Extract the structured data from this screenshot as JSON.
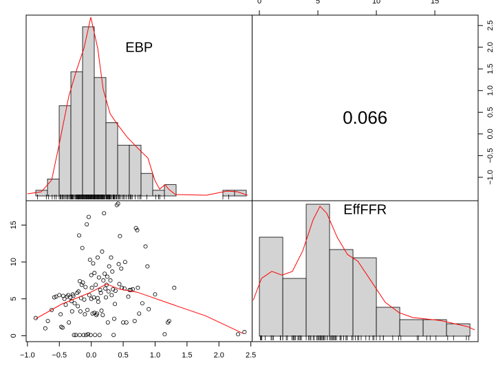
{
  "chart_data": [
    {
      "type": "histogram",
      "title": "EBP",
      "color": "#d3d3d3",
      "bins": [
        -0.9,
        -0.7,
        -0.5,
        -0.3,
        -0.1,
        0.1,
        0.3,
        0.5,
        0.7,
        0.9,
        1.1,
        1.3,
        1.5,
        1.7,
        1.9,
        2.1,
        2.3,
        2.5,
        2.7
      ],
      "counts": [
        1,
        3,
        16,
        22,
        30,
        21,
        13,
        9,
        9,
        4,
        1,
        2,
        0,
        0,
        0,
        0,
        1,
        1
      ],
      "xlim": [
        -1.065,
        2.8
      ],
      "ylim": [
        -0.85,
        32.07
      ],
      "density": {
        "color": "#ff0000",
        "x": [
          -1.041,
          -0.806,
          -0.629,
          -0.5,
          -0.335,
          -0.194,
          -0.076,
          0.041,
          0.159,
          0.253,
          0.371,
          0.488,
          0.665,
          0.841,
          1.018,
          1.135,
          1.218,
          1.312,
          1.371,
          1.488,
          2.018,
          2.371,
          2.547,
          2.724
        ],
        "y": [
          0.37,
          0.73,
          2.8,
          9.15,
          17.7,
          22.6,
          26.2,
          31.7,
          26.2,
          18.9,
          14.6,
          12.8,
          10.4,
          8.5,
          6.7,
          2.8,
          1.2,
          2.0,
          1.2,
          0.24,
          0.12,
          0.85,
          0.73,
          0.12
        ]
      }
    },
    {
      "type": "correlation",
      "value": 0.066,
      "xlim": [
        -0.62,
        18.7
      ],
      "xticks": [
        0,
        5,
        10,
        15
      ],
      "xaxis": "top",
      "ylim": [
        -1.54,
        2.74
      ],
      "yaxis": "right",
      "yticks": [
        {
          "value": -1.0,
          "label": "−1.0"
        },
        {
          "value": -0.5,
          "label": "−0.5"
        },
        {
          "value": 0.0,
          "label": "0.0"
        },
        {
          "value": 0.5,
          "label": "0.5"
        },
        {
          "value": 1.0,
          "label": "1.0"
        },
        {
          "value": 1.5,
          "label": "1.5"
        },
        {
          "value": 2.0,
          "label": "2.0"
        },
        {
          "value": 2.5,
          "label": "2.5"
        }
      ]
    },
    {
      "type": "scatter",
      "xlim": [
        -1.02,
        2.52
      ],
      "xaxis": "bottom",
      "xticks": [
        {
          "value": -1.0,
          "label": "−1.0"
        },
        {
          "value": -0.5,
          "label": "−0.5"
        },
        {
          "value": 0.0,
          "label": "0.0"
        },
        {
          "value": 0.5,
          "label": "0.5"
        },
        {
          "value": 1.0,
          "label": "1.0"
        },
        {
          "value": 1.5,
          "label": "1.5"
        },
        {
          "value": 2.0,
          "label": "2.0"
        },
        {
          "value": 2.5,
          "label": "2.5"
        }
      ],
      "ylim": [
        -0.8,
        18.3
      ],
      "yticks": [
        0,
        5,
        10,
        15
      ],
      "yaxis": "left",
      "x": [
        -0.87,
        -0.72,
        -0.68,
        -0.62,
        -0.58,
        -0.55,
        -0.5,
        -0.48,
        -0.47,
        -0.45,
        -0.44,
        -0.42,
        -0.4,
        -0.38,
        -0.36,
        -0.35,
        -0.33,
        -0.31,
        -0.3,
        -0.29,
        -0.28,
        -0.27,
        -0.26,
        -0.24,
        -0.22,
        -0.21,
        -0.2,
        -0.19,
        -0.18,
        -0.18,
        -0.17,
        -0.16,
        -0.15,
        -0.14,
        -0.13,
        -0.12,
        -0.11,
        -0.1,
        -0.09,
        -0.08,
        -0.07,
        -0.06,
        -0.05,
        -0.04,
        -0.03,
        -0.02,
        -0.01,
        0.0,
        0.0,
        0.01,
        0.02,
        0.03,
        0.04,
        0.05,
        0.05,
        0.06,
        0.07,
        0.08,
        0.09,
        0.1,
        0.1,
        0.11,
        0.12,
        0.13,
        0.14,
        0.15,
        0.16,
        0.17,
        0.18,
        0.19,
        0.2,
        0.21,
        0.22,
        0.23,
        0.24,
        0.25,
        0.26,
        0.27,
        0.28,
        0.3,
        0.31,
        0.32,
        0.33,
        0.34,
        0.35,
        0.36,
        0.37,
        0.38,
        0.4,
        0.42,
        0.43,
        0.44,
        0.45,
        0.47,
        0.48,
        0.5,
        0.52,
        0.53,
        0.55,
        0.58,
        0.6,
        0.62,
        0.65,
        0.68,
        0.7,
        0.72,
        0.73,
        0.75,
        0.8,
        0.85,
        0.88,
        0.9,
        1.0,
        1.15,
        1.2,
        1.22,
        1.3,
        2.3,
        2.4
      ],
      "y": [
        2.4,
        1.0,
        2.0,
        3.5,
        5.2,
        5.3,
        5.5,
        2.9,
        1.2,
        1.1,
        5.4,
        5.0,
        4.2,
        5.3,
        5.5,
        1.8,
        5.2,
        4.7,
        3.3,
        5.6,
        5.4,
        0.1,
        4.4,
        0.1,
        5.8,
        4.0,
        6.0,
        13.6,
        0.1,
        7.4,
        3.3,
        5.1,
        6.9,
        11.9,
        7.2,
        0.1,
        4.9,
        2.9,
        6.6,
        0.1,
        15.1,
        3.5,
        0.2,
        16.1,
        5.5,
        10.3,
        0.1,
        8.2,
        5.0,
        6.5,
        3.0,
        9.8,
        5.2,
        8.5,
        3.1,
        0.1,
        6.9,
        2.8,
        3.0,
        10.6,
        5.1,
        4.6,
        7.9,
        0.1,
        6.2,
        5.8,
        3.4,
        11.4,
        2.8,
        7.5,
        16.6,
        8.4,
        6.4,
        5.2,
        6.9,
        8.0,
        1.8,
        6.0,
        9.4,
        7.5,
        10.6,
        5.5,
        8.7,
        6.3,
        0.1,
        2.3,
        4.3,
        6.1,
        17.7,
        17.9,
        9.7,
        7.0,
        13.5,
        9.1,
        6.5,
        1.8,
        6.4,
        10.0,
        1.8,
        5.3,
        6.2,
        6.2,
        6.3,
        2.0,
        14.6,
        14.3,
        6.5,
        3.0,
        4.4,
        12.1,
        9.4,
        3.6,
        5.6,
        0.2,
        1.8,
        2.0,
        6.5,
        0.2,
        0.5
      ],
      "smooth": {
        "color": "#ff0000",
        "x": [
          -0.87,
          -0.46,
          -0.03,
          0.24,
          0.45,
          0.72,
          1.25,
          1.79,
          2.38
        ],
        "y": [
          2.3,
          4.3,
          5.8,
          7.0,
          6.3,
          5.9,
          4.3,
          2.7,
          0.3
        ]
      }
    },
    {
      "type": "histogram",
      "title": "EffFFR",
      "color": "#d3d3d3",
      "bins": [
        0,
        2,
        4,
        6,
        8,
        10,
        12,
        14,
        16,
        18
      ],
      "counts": [
        24,
        14,
        32,
        21,
        19,
        7,
        4,
        4,
        3
      ],
      "xlim": [
        -0.62,
        18.7
      ],
      "ylim": [
        -1.33,
        32.84
      ],
      "density": {
        "color": "#ff0000",
        "x": [
          -0.53,
          0.18,
          1.06,
          1.94,
          2.82,
          3.71,
          4.59,
          5.18,
          5.76,
          6.65,
          7.53,
          8.41,
          9.59,
          10.76,
          11.94,
          13.12,
          15.47,
          17.82,
          18.41
        ],
        "y": [
          8.67,
          14,
          15.7,
          14.8,
          15.7,
          20.7,
          28.2,
          31.5,
          29.8,
          24,
          19.8,
          18.2,
          13.2,
          8.2,
          5.7,
          4.5,
          3.8,
          2.3,
          1.5
        ]
      }
    }
  ]
}
